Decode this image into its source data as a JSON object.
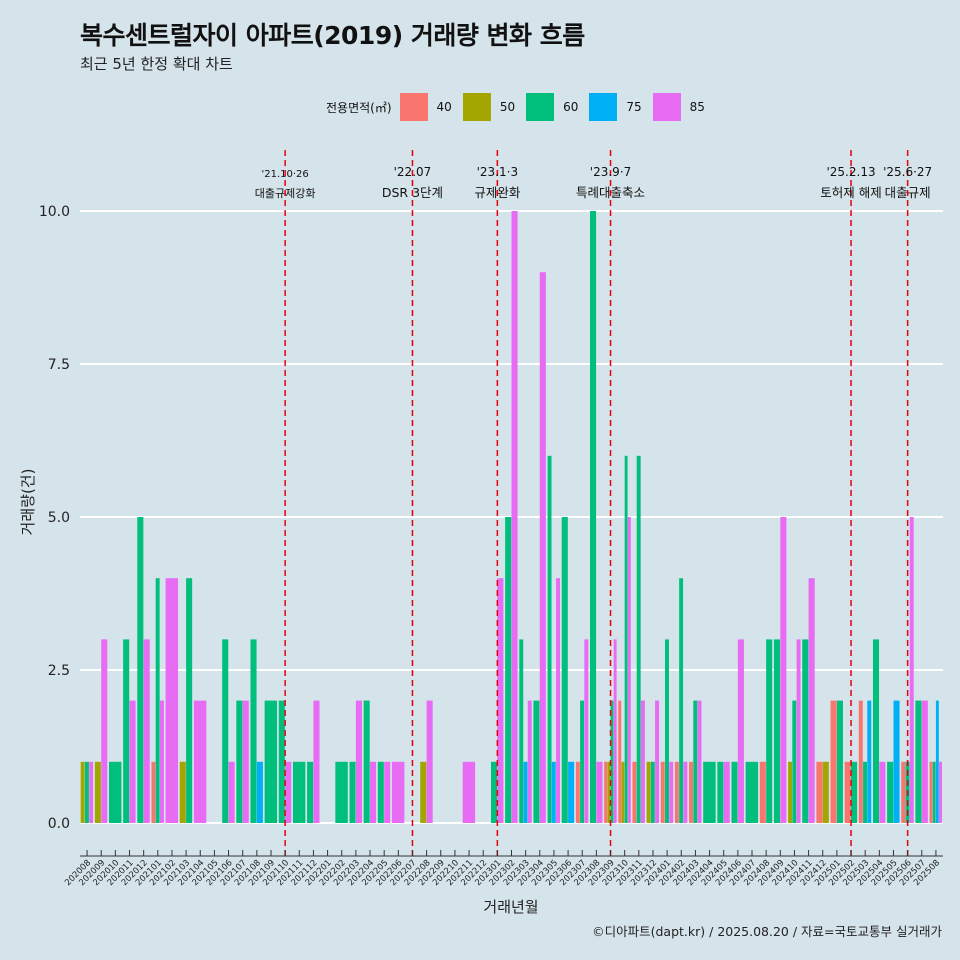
{
  "header": {
    "title": "복수센트럴자이 아파트(2019) 거래량 변화 흐름",
    "subtitle": "최근 5년 한정 확대 차트"
  },
  "legend": {
    "title": "전용면적(㎡)",
    "items": [
      {
        "label": "40",
        "color": "#f8766d"
      },
      {
        "label": "50",
        "color": "#a3a500"
      },
      {
        "label": "60",
        "color": "#00bf7d"
      },
      {
        "label": "75",
        "color": "#00b0f6"
      },
      {
        "label": "85",
        "color": "#e76bf3"
      }
    ]
  },
  "footer": {
    "source": "©디아파트(dapt.kr) / 2025.08.20 / 자료=국토교통부 실거래가"
  },
  "chart_data": {
    "type": "bar",
    "stacking": "dodge",
    "xlabel": "거래년월",
    "ylabel": "거래량(건)",
    "ylim": [
      -0.45,
      11.2
    ],
    "yticks": [
      0.0,
      2.5,
      5.0,
      7.5,
      10.0
    ],
    "ytick_labels": [
      "0.0",
      "2.5",
      "5.0",
      "7.5",
      "10.0"
    ],
    "series_names": [
      "40",
      "50",
      "60",
      "75",
      "85"
    ],
    "months": [
      {
        "label": "202008",
        "bars": {
          "50": 1,
          "60": 1,
          "85": 1
        }
      },
      {
        "label": "202009",
        "bars": {
          "50": 1,
          "85": 3
        }
      },
      {
        "label": "202010",
        "bars": {
          "60": 1
        }
      },
      {
        "label": "202011",
        "bars": {
          "60": 3,
          "85": 2
        }
      },
      {
        "label": "202012",
        "bars": {
          "60": 5,
          "85": 3
        }
      },
      {
        "label": "202101",
        "bars": {
          "40": 1,
          "60": 4,
          "85": 2
        }
      },
      {
        "label": "202102",
        "bars": {
          "85": 4
        }
      },
      {
        "label": "202103",
        "bars": {
          "50": 1,
          "60": 4
        }
      },
      {
        "label": "202104",
        "bars": {
          "85": 2
        }
      },
      {
        "label": "202105",
        "bars": {}
      },
      {
        "label": "202106",
        "bars": {
          "60": 3,
          "85": 1
        }
      },
      {
        "label": "202107",
        "bars": {
          "60": 2,
          "85": 2
        }
      },
      {
        "label": "202108",
        "bars": {
          "60": 3,
          "75": 1
        }
      },
      {
        "label": "202109",
        "bars": {
          "60": 2
        }
      },
      {
        "label": "202110",
        "bars": {
          "60": 2,
          "85": 1
        }
      },
      {
        "label": "202111",
        "bars": {
          "60": 1
        }
      },
      {
        "label": "202112",
        "bars": {
          "60": 1,
          "85": 2
        }
      },
      {
        "label": "202201",
        "bars": {}
      },
      {
        "label": "202202",
        "bars": {
          "60": 1
        }
      },
      {
        "label": "202203",
        "bars": {
          "60": 1,
          "85": 2
        }
      },
      {
        "label": "202204",
        "bars": {
          "60": 2,
          "85": 1
        }
      },
      {
        "label": "202205",
        "bars": {
          "60": 1,
          "85": 1
        }
      },
      {
        "label": "202206",
        "bars": {
          "85": 1
        }
      },
      {
        "label": "202207",
        "bars": {}
      },
      {
        "label": "202208",
        "bars": {
          "50": 1,
          "85": 2
        }
      },
      {
        "label": "202209",
        "bars": {}
      },
      {
        "label": "202210",
        "bars": {}
      },
      {
        "label": "202211",
        "bars": {
          "85": 1
        }
      },
      {
        "label": "202212",
        "bars": {}
      },
      {
        "label": "202301",
        "bars": {
          "60": 1,
          "85": 4
        }
      },
      {
        "label": "202302",
        "bars": {
          "60": 5,
          "85": 10
        }
      },
      {
        "label": "202303",
        "bars": {
          "60": 3,
          "75": 1,
          "85": 2
        }
      },
      {
        "label": "202304",
        "bars": {
          "60": 2,
          "85": 9
        }
      },
      {
        "label": "202305",
        "bars": {
          "60": 6,
          "75": 1,
          "85": 4
        }
      },
      {
        "label": "202306",
        "bars": {
          "60": 5,
          "75": 1
        }
      },
      {
        "label": "202307",
        "bars": {
          "40": 1,
          "60": 2,
          "85": 3
        }
      },
      {
        "label": "202308",
        "bars": {
          "60": 10,
          "85": 1
        }
      },
      {
        "label": "202309",
        "bars": {
          "40": 1,
          "50": 1,
          "60": 2,
          "85": 3
        }
      },
      {
        "label": "202310",
        "bars": {
          "40": 2,
          "50": 1,
          "60": 6,
          "85": 5
        }
      },
      {
        "label": "202311",
        "bars": {
          "40": 1,
          "60": 6,
          "85": 2
        }
      },
      {
        "label": "202312",
        "bars": {
          "50": 1,
          "60": 1,
          "85": 2
        }
      },
      {
        "label": "202401",
        "bars": {
          "40": 1,
          "60": 3,
          "85": 1
        }
      },
      {
        "label": "202402",
        "bars": {
          "40": 1,
          "60": 4,
          "85": 1
        }
      },
      {
        "label": "202403",
        "bars": {
          "40": 1,
          "60": 2,
          "85": 2
        }
      },
      {
        "label": "202404",
        "bars": {
          "60": 1
        }
      },
      {
        "label": "202405",
        "bars": {
          "60": 1,
          "85": 1
        }
      },
      {
        "label": "202406",
        "bars": {
          "60": 1,
          "85": 3
        }
      },
      {
        "label": "202407",
        "bars": {
          "60": 1
        }
      },
      {
        "label": "202408",
        "bars": {
          "40": 1,
          "60": 3
        }
      },
      {
        "label": "202409",
        "bars": {
          "60": 3,
          "85": 5
        }
      },
      {
        "label": "202410",
        "bars": {
          "50": 1,
          "60": 2,
          "85": 3
        }
      },
      {
        "label": "202411",
        "bars": {
          "60": 3,
          "85": 4
        }
      },
      {
        "label": "202412",
        "bars": {
          "40": 1,
          "50": 1
        }
      },
      {
        "label": "202501",
        "bars": {
          "60": 2,
          "40": 2
        }
      },
      {
        "label": "202502",
        "bars": {
          "40": 1,
          "60": 1
        }
      },
      {
        "label": "202503",
        "bars": {
          "40": 2,
          "60": 1,
          "75": 2
        }
      },
      {
        "label": "202504",
        "bars": {
          "60": 3,
          "85": 1
        }
      },
      {
        "label": "202505",
        "bars": {
          "60": 1,
          "75": 2
        }
      },
      {
        "label": "202506",
        "bars": {
          "40": 1,
          "60": 1,
          "85": 5
        }
      },
      {
        "label": "202507",
        "bars": {
          "60": 2,
          "85": 2
        }
      },
      {
        "label": "202508",
        "bars": {
          "40": 1,
          "60": 1,
          "75": 2,
          "85": 1
        }
      }
    ],
    "events": [
      {
        "month_index": 14,
        "date": "'21.10·26",
        "label": "대출규제강화"
      },
      {
        "month_index": 23,
        "date": "'22.07",
        "label": "DSR 3단계"
      },
      {
        "month_index": 29,
        "date": "'23.1·3",
        "label": "규제완화"
      },
      {
        "month_index": 37,
        "date": "'23.9·7",
        "label": "특례대출축소"
      },
      {
        "month_index": 54,
        "date": "'25.2.13",
        "label": "토허제 해제"
      },
      {
        "month_index": 58,
        "date": "'25.6·27",
        "label": "대출규제"
      }
    ]
  }
}
